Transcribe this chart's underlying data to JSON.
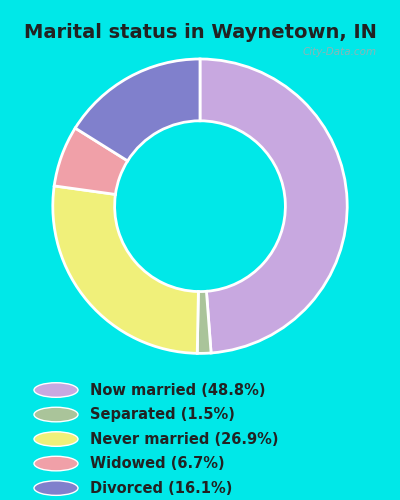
{
  "title": "Marital status in Waynetown, IN",
  "slices": [
    48.8,
    1.5,
    26.9,
    6.7,
    16.1
  ],
  "colors": [
    "#c8a8e0",
    "#aac49a",
    "#f0f07a",
    "#f0a0a8",
    "#8080cc"
  ],
  "labels": [
    "Now married (48.8%)",
    "Separated (1.5%)",
    "Never married (26.9%)",
    "Widowed (6.7%)",
    "Divorced (16.1%)"
  ],
  "legend_colors": [
    "#c8a8e0",
    "#aac49a",
    "#f0f07a",
    "#f0a0a8",
    "#8080cc"
  ],
  "bg_outer": "#00e8e8",
  "bg_inner_color": "#d0eed8",
  "title_fontsize": 14,
  "watermark": "City-Data.com",
  "startangle": 90
}
